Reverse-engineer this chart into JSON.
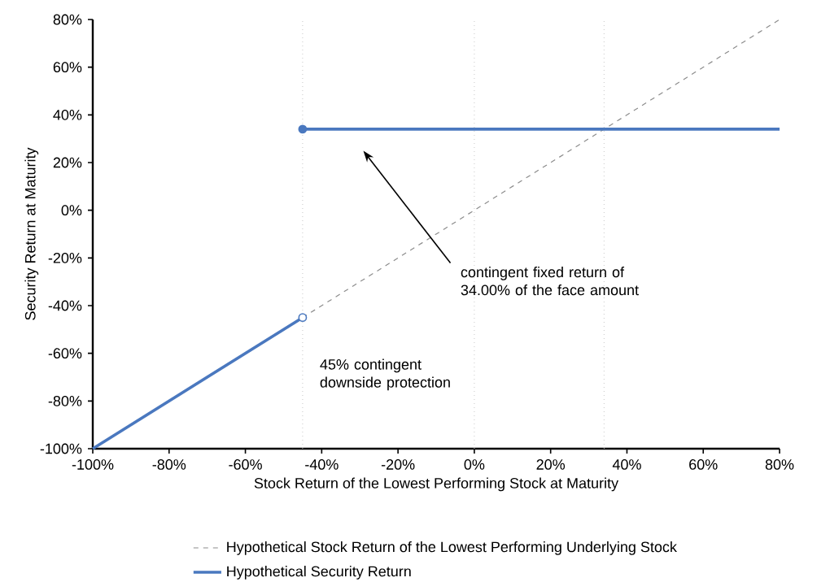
{
  "chart_data": {
    "type": "line",
    "xlabel": "Stock Return of the Lowest Performing Stock at Maturity",
    "ylabel": "Security Return at Maturity",
    "xlim": [
      -100,
      80
    ],
    "ylim": [
      -100,
      80
    ],
    "xticks": [
      {
        "value": -100,
        "label": "-100%"
      },
      {
        "value": -80,
        "label": "-80%"
      },
      {
        "value": -60,
        "label": "-60%"
      },
      {
        "value": -40,
        "label": "-40%"
      },
      {
        "value": -20,
        "label": "-20%"
      },
      {
        "value": 0,
        "label": "0%"
      },
      {
        "value": 20,
        "label": "20%"
      },
      {
        "value": 40,
        "label": "40%"
      },
      {
        "value": 60,
        "label": "60%"
      },
      {
        "value": 80,
        "label": "80%"
      }
    ],
    "yticks": [
      {
        "value": -100,
        "label": "-100%"
      },
      {
        "value": -80,
        "label": "-80%"
      },
      {
        "value": -60,
        "label": "-60%"
      },
      {
        "value": -40,
        "label": "-40%"
      },
      {
        "value": -20,
        "label": "-20%"
      },
      {
        "value": 0,
        "label": "0%"
      },
      {
        "value": 20,
        "label": "20%"
      },
      {
        "value": 40,
        "label": "40%"
      },
      {
        "value": 60,
        "label": "60%"
      },
      {
        "value": 80,
        "label": "80%"
      }
    ],
    "grid": false,
    "legend": "bottom",
    "ref_lines": [
      {
        "axis": "x",
        "value": -45,
        "color": "#c8c8c8",
        "line_style": "dotted"
      },
      {
        "axis": "x",
        "value": 0,
        "color": "#c8c8c8",
        "line_style": "dotted"
      },
      {
        "axis": "x",
        "value": 34,
        "color": "#c8c8c8",
        "line_style": "dotted"
      }
    ],
    "series": [
      {
        "name": "Hypothetical Stock Return of the Lowest Performing Underlying Stock",
        "color": "#8c8c8c",
        "line_style": "dashed",
        "x": [
          -45,
          80
        ],
        "values": [
          -45,
          80
        ]
      },
      {
        "name": "Hypothetical Security Return",
        "color": "#4a78bf",
        "line_style": "solid",
        "x": [
          -100,
          -45
        ],
        "values": [
          -100,
          -45
        ]
      },
      {
        "color": "#4a78bf",
        "line_style": "solid",
        "x": [
          -45,
          80
        ],
        "values": [
          34,
          34
        ]
      },
      {
        "type": "scatter",
        "color": "#4a78bf",
        "marker": "circle",
        "colors": [
          "#ffffff",
          "#4a78bf"
        ],
        "x": [
          -45,
          -45
        ],
        "values": [
          -45,
          34
        ]
      }
    ],
    "annotations": [
      "contingent fixed return of 34.00% of the face amount",
      "45% contingent downside protection"
    ]
  }
}
